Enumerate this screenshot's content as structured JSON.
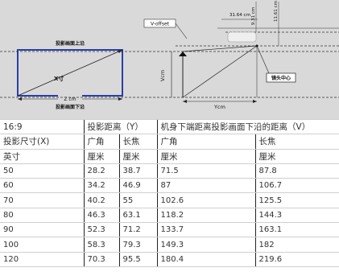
{
  "diagram": {
    "screen_top_label": "投影画面上沿",
    "screen_bottom_label": "投影画面下沿",
    "x_label": "X寸",
    "z_label": "Z cm",
    "v_label": "Vcm",
    "y_label": "Ycm",
    "v_offset_label": "V-offset",
    "dim_31": "31.64 cm",
    "dim_9": "9.31 cm",
    "dim_11": "11.61 cm",
    "lens_center_label": "镜头中心"
  },
  "table": {
    "header1": [
      "16:9",
      "投影距离（Y）",
      "机身下端距离投影画面下沿的距离（V）"
    ],
    "header2": [
      "投影尺寸(X)",
      "广角",
      "长焦",
      "广角",
      "长焦"
    ],
    "header3": [
      "英寸",
      "厘米",
      "厘米",
      "厘米",
      "厘米"
    ],
    "rows": [
      [
        "50",
        "28.2",
        "38.7",
        "71.5",
        "87.8"
      ],
      [
        "60",
        "34.2",
        "46.9",
        "87",
        "106.7"
      ],
      [
        "70",
        "40.2",
        "55",
        "102.6",
        "125.5"
      ],
      [
        "80",
        "46.3",
        "63.1",
        "118.2",
        "144.3"
      ],
      [
        "90",
        "52.3",
        "71.2",
        "133.7",
        "163.1"
      ],
      [
        "100",
        "58.3",
        "79.3",
        "149.3",
        "182"
      ],
      [
        "120",
        "70.3",
        "95.5",
        "180.4",
        "219.6"
      ]
    ]
  }
}
